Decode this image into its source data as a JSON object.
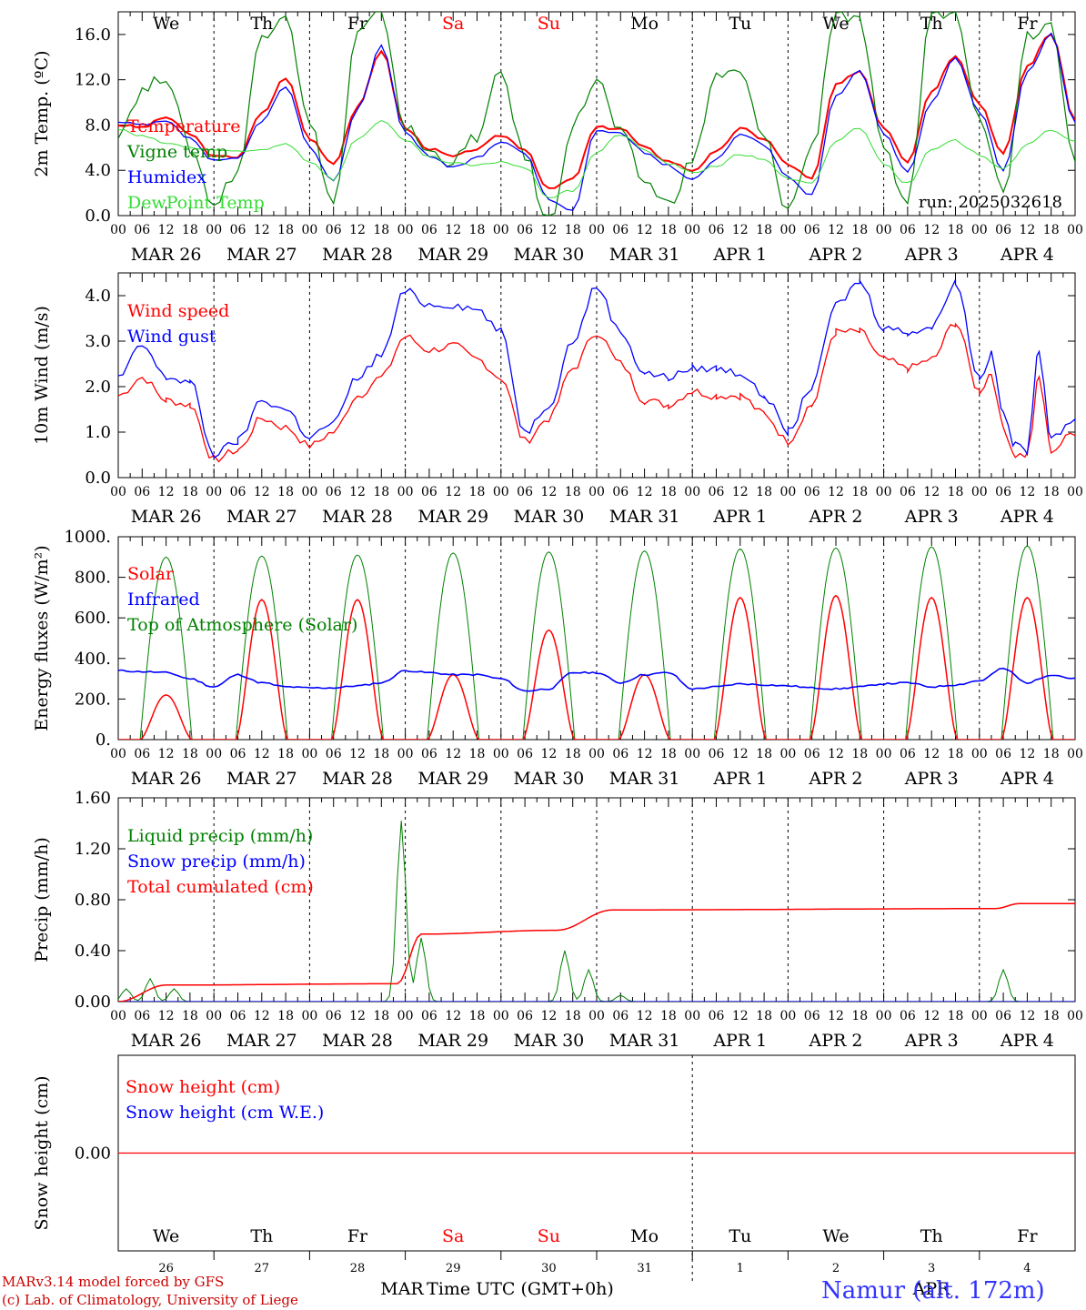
{
  "run": "run: 2025032618",
  "hour_ticks": [
    "00",
    "06",
    "12",
    "18"
  ],
  "hour_end": "00",
  "date_labels": [
    "MAR 26",
    "MAR 27",
    "MAR 28",
    "MAR 29",
    "MAR 30",
    "MAR 31",
    "APR  1",
    "APR  2",
    "APR  3",
    "APR  4"
  ],
  "weekdays": [
    "We",
    "Th",
    "Fr",
    "Sa",
    "Su",
    "Mo",
    "Tu",
    "We",
    "Th",
    "Fr"
  ],
  "weekday_colors": [
    "#000000",
    "#000000",
    "#000000",
    "#ff0000",
    "#ff0000",
    "#000000",
    "#000000",
    "#000000",
    "#000000",
    "#000000"
  ],
  "bottom_day_numbers": [
    "26",
    "27",
    "28",
    "29",
    "30",
    "31",
    "1",
    "2",
    "3",
    "4"
  ],
  "bottom_month_1": "MAR",
  "bottom_month_2": "APR",
  "xlabel": "Time UTC (GMT+0h)",
  "credit_line1": "MARv3.14 model forced by GFS",
  "credit_line2": "(c) Lab. of Climatology, University of Liege",
  "station": "Namur (alt. 172m)",
  "colors": {
    "red": "#ff0000",
    "blue": "#0000ff",
    "green": "#008000",
    "lightgreen": "#33dd33",
    "credit": "#cc0000",
    "station": "#3333ff"
  },
  "chart_data": [
    {
      "type": "line",
      "ylabel": "2m Temp. (ºC)",
      "ylim": [
        0,
        18
      ],
      "yticks": [
        0,
        4,
        8,
        12,
        16
      ],
      "ytick_labels": [
        "0.0",
        "4.0",
        "8.0",
        "12.0",
        "16.0"
      ],
      "x_unit": "hours since 2025-03-26 00 UTC",
      "x": [
        0,
        6,
        12,
        18,
        24,
        30,
        36,
        42,
        48,
        54,
        60,
        66,
        72,
        78,
        84,
        90,
        96,
        102,
        108,
        114,
        120,
        126,
        132,
        138,
        144,
        150,
        156,
        162,
        168,
        174,
        180,
        186,
        192,
        198,
        204,
        210,
        216,
        222,
        228,
        234
      ],
      "series": [
        {
          "name": "Temperature",
          "color": "red",
          "values": [
            8.0,
            7.8,
            8.7,
            7.2,
            5.2,
            5.2,
            9.0,
            12.2,
            6.8,
            4.6,
            9.5,
            14.6,
            7.7,
            5.9,
            5.2,
            5.9,
            7.1,
            5.9,
            2.3,
            3.2,
            7.8,
            7.7,
            6.0,
            4.8,
            4.0,
            5.6,
            7.7,
            6.8,
            4.5,
            3.2,
            11.5,
            12.8,
            7.8,
            4.8,
            11.0,
            14.2,
            9.9,
            5.4,
            13.2,
            16.1
          ]
        },
        {
          "name": "Vigne temp",
          "color": "green",
          "values": [
            7.4,
            11.0,
            12.4,
            6.0,
            1.0,
            4.0,
            16.0,
            18.0,
            8.0,
            1.0,
            16.0,
            18.0,
            7.8,
            5.6,
            4.8,
            7.0,
            12.6,
            5.2,
            -1.0,
            8.0,
            12.0,
            7.2,
            3.0,
            1.0,
            4.8,
            12.4,
            12.5,
            6.8,
            0.5,
            6.0,
            18.0,
            17.0,
            5.5,
            1.2,
            18.0,
            18.0,
            9.0,
            2.0,
            16.0,
            17.0
          ]
        },
        {
          "name": "Humidex",
          "color": "blue",
          "values": [
            8.2,
            8.0,
            8.3,
            6.8,
            4.8,
            5.0,
            8.4,
            11.4,
            6.0,
            3.0,
            9.4,
            15.0,
            7.3,
            5.3,
            4.2,
            5.1,
            6.6,
            5.5,
            1.4,
            0.4,
            7.5,
            7.3,
            5.6,
            4.4,
            3.2,
            5.0,
            7.2,
            6.3,
            3.4,
            1.8,
            10.5,
            12.8,
            7.2,
            3.8,
            10.0,
            14.0,
            9.2,
            4.0,
            12.6,
            16.0
          ]
        },
        {
          "name": "DewPoint Temp",
          "color": "lightgreen",
          "values": [
            7.6,
            7.0,
            6.4,
            6.0,
            5.8,
            5.6,
            5.8,
            6.4,
            4.8,
            3.2,
            6.8,
            8.4,
            6.6,
            5.2,
            4.6,
            4.4,
            4.8,
            4.2,
            1.6,
            2.2,
            5.6,
            7.2,
            5.8,
            4.6,
            3.8,
            4.4,
            5.4,
            5.0,
            3.2,
            2.8,
            6.6,
            7.8,
            4.6,
            2.8,
            5.8,
            6.6,
            5.4,
            4.2,
            6.2,
            7.6
          ]
        }
      ],
      "series_tail": [
        [
          8.9,
          13.4,
          8.4
        ],
        [
          12.0,
          17.0,
          5.2
        ],
        [
          8.6,
          13.0,
          8.2
        ],
        [
          6.2,
          9.4,
          6.6
        ]
      ]
    },
    {
      "type": "line",
      "ylabel": "10m Wind (m/s)",
      "ylim": [
        0,
        4.5
      ],
      "yticks": [
        0,
        1,
        2,
        3,
        4
      ],
      "ytick_labels": [
        "0.0",
        "1.0",
        "2.0",
        "3.0",
        "4.0"
      ],
      "x": [
        0,
        6,
        12,
        18,
        24,
        30,
        36,
        42,
        48,
        54,
        60,
        66,
        72,
        78,
        84,
        90,
        96,
        102,
        108,
        114,
        120,
        126,
        132,
        138,
        144,
        150,
        156,
        162,
        168,
        174,
        180,
        186,
        192,
        198,
        204,
        210,
        216,
        222,
        228,
        234
      ],
      "series": [
        {
          "name": "Wind speed",
          "color": "red",
          "values": [
            1.8,
            2.2,
            1.7,
            1.6,
            0.4,
            0.6,
            1.3,
            1.1,
            0.7,
            1.0,
            1.8,
            2.2,
            3.1,
            2.8,
            2.9,
            2.6,
            2.2,
            0.8,
            1.3,
            2.4,
            3.2,
            2.5,
            1.7,
            1.6,
            1.9,
            1.8,
            1.8,
            1.4,
            0.8,
            1.6,
            3.2,
            3.2,
            2.6,
            2.4,
            2.6,
            3.4,
            2.0,
            1.3,
            2.2,
            2.8
          ]
        },
        {
          "name": "Wind gust",
          "color": "blue",
          "values": [
            2.2,
            2.9,
            2.2,
            2.1,
            0.5,
            0.8,
            1.7,
            1.5,
            0.9,
            1.2,
            2.2,
            2.7,
            4.1,
            3.8,
            3.8,
            3.7,
            3.2,
            1.0,
            1.6,
            3.0,
            4.2,
            3.2,
            2.3,
            2.2,
            2.4,
            2.4,
            2.3,
            1.8,
            1.0,
            2.0,
            3.8,
            4.3,
            3.3,
            3.2,
            3.3,
            4.3,
            2.7,
            1.7,
            2.6,
            3.5
          ]
        }
      ],
      "series_tail": [
        [
          1.9,
          2.3,
          1.1,
          0.5,
          0.5,
          2.2,
          0.6,
          1.0
        ],
        [
          2.2,
          2.7,
          1.4,
          0.7,
          0.6,
          2.8,
          0.9,
          1.3
        ]
      ]
    },
    {
      "type": "line",
      "ylabel": "Energy fluxes (W/m²)",
      "ylim": [
        0,
        1000
      ],
      "yticks": [
        0,
        200,
        400,
        600,
        800,
        1000
      ],
      "ytick_labels": [
        "0.",
        "200.",
        "400.",
        "600.",
        "800.",
        "1000."
      ],
      "series": [
        {
          "name": "Solar",
          "color": "red",
          "daily_peak": [
            220,
            690,
            690,
            320,
            540,
            320,
            700,
            710,
            700,
            700
          ]
        },
        {
          "name": "Infrared",
          "color": "blue",
          "values_every_6h": [
            340,
            335,
            330,
            300,
            260,
            320,
            280,
            260,
            255,
            255,
            265,
            280,
            340,
            330,
            320,
            320,
            300,
            240,
            250,
            330,
            330,
            280,
            320,
            330,
            250,
            260,
            275,
            270,
            265,
            255,
            250,
            260,
            275,
            280,
            260,
            270,
            290,
            350,
            280,
            320,
            300,
            275
          ]
        },
        {
          "name": "Top of Atmosphere (Solar)",
          "color": "green",
          "daily_peak": [
            900,
            905,
            910,
            920,
            925,
            930,
            940,
            945,
            950,
            955
          ]
        }
      ]
    },
    {
      "type": "line",
      "ylabel": "Precip (mm/h)",
      "ylim": [
        0,
        1.6
      ],
      "yticks": [
        0,
        0.4,
        0.8,
        1.2,
        1.6
      ],
      "ytick_labels": [
        "0.00",
        "0.40",
        "0.80",
        "1.20",
        "1.60"
      ],
      "series": [
        {
          "name": "Liquid precip (mm/h)",
          "color": "green",
          "peaks": [
            {
              "x": 2,
              "y": 0.1
            },
            {
              "x": 8,
              "y": 0.18
            },
            {
              "x": 14,
              "y": 0.1
            },
            {
              "x": 71,
              "y": 1.42
            },
            {
              "x": 76,
              "y": 0.5
            },
            {
              "x": 112,
              "y": 0.4
            },
            {
              "x": 118,
              "y": 0.25
            },
            {
              "x": 126,
              "y": 0.05
            },
            {
              "x": 222,
              "y": 0.25
            }
          ]
        },
        {
          "name": "Snow precip (mm/h)",
          "color": "blue",
          "constant": 0
        },
        {
          "name": "Total cumulated (cm)",
          "color": "red",
          "steps": [
            {
              "x": 0,
              "y": 0.0
            },
            {
              "x": 12,
              "y": 0.13
            },
            {
              "x": 70,
              "y": 0.14
            },
            {
              "x": 76,
              "y": 0.53
            },
            {
              "x": 110,
              "y": 0.56
            },
            {
              "x": 124,
              "y": 0.72
            },
            {
              "x": 220,
              "y": 0.73
            },
            {
              "x": 226,
              "y": 0.77
            },
            {
              "x": 240,
              "y": 0.77
            }
          ]
        }
      ]
    },
    {
      "type": "line",
      "ylabel": "Snow height (cm)",
      "ylim": [
        -1,
        1
      ],
      "yticks": [
        0
      ],
      "ytick_labels": [
        "0.00"
      ],
      "series": [
        {
          "name": "Snow height (cm)",
          "color": "red",
          "constant": 0
        },
        {
          "name": "Snow height (cm W.E.)",
          "color": "blue",
          "constant": 0
        }
      ]
    }
  ]
}
